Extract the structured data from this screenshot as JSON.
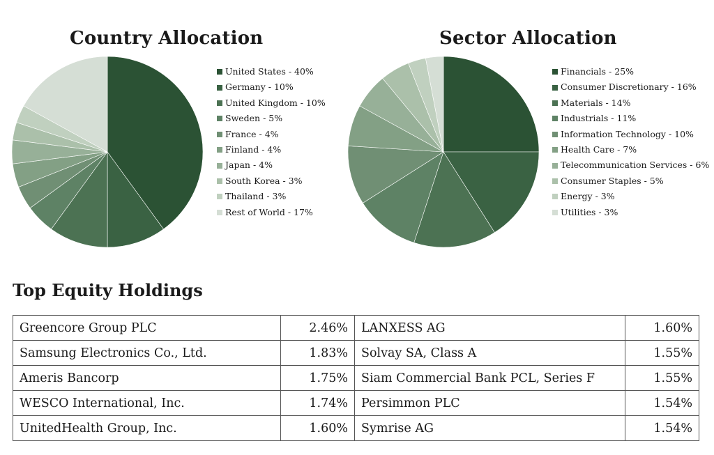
{
  "chart_data": [
    {
      "type": "pie",
      "title": "Country Allocation",
      "categories": [
        "United States",
        "Germany",
        "United Kingdom",
        "Sweden",
        "France",
        "Finland",
        "Japan",
        "South Korea",
        "Thailand",
        "Rest of World"
      ],
      "values": [
        40,
        10,
        10,
        5,
        4,
        4,
        4,
        3,
        3,
        17
      ],
      "labels": [
        "United States - 40%",
        "Germany - 10%",
        "United Kingdom - 10%",
        "Sweden - 5%",
        "France - 4%",
        "Finland - 4%",
        "Japan - 4%",
        "South Korea - 3%",
        "Thailand - 3%",
        "Rest of World - 17%"
      ],
      "colors": [
        "#2b5234",
        "#3a6243",
        "#4c7253",
        "#5e8265",
        "#708f74",
        "#83a085",
        "#97b098",
        "#abc0aa",
        "#c0d0bf",
        "#d5ded5"
      ],
      "legend": "right"
    },
    {
      "type": "pie",
      "title": "Sector Allocation",
      "categories": [
        "Financials",
        "Consumer Discretionary",
        "Materials",
        "Industrials",
        "Information Technology",
        "Health Care",
        "Telecommunication Services",
        "Consumer Staples",
        "Energy",
        "Utilities"
      ],
      "values": [
        25,
        16,
        14,
        11,
        10,
        7,
        6,
        5,
        3,
        3
      ],
      "labels": [
        "Financials - 25%",
        "Consumer Discretionary - 16%",
        "Materials - 14%",
        "Industrials - 11%",
        "Information Technology - 10%",
        "Health Care - 7%",
        "Telecommunication Services - 6%",
        "Consumer Staples - 5%",
        "Energy - 3%",
        "Utilities - 3%"
      ],
      "colors": [
        "#2b5234",
        "#3a6243",
        "#4c7253",
        "#5e8265",
        "#708f74",
        "#83a085",
        "#97b098",
        "#abc0aa",
        "#c0d0bf",
        "#d5ded5"
      ],
      "legend": "right"
    }
  ],
  "holdings": {
    "heading": "Top Equity Holdings",
    "rows": [
      {
        "left_name": "Greencore Group PLC",
        "left_pct": "2.46%",
        "right_name": "LANXESS AG",
        "right_pct": "1.60%"
      },
      {
        "left_name": "Samsung Electronics Co., Ltd.",
        "left_pct": "1.83%",
        "right_name": "Solvay SA, Class A",
        "right_pct": "1.55%"
      },
      {
        "left_name": "Ameris Bancorp",
        "left_pct": "1.75%",
        "right_name": "Siam Commercial Bank PCL, Series F",
        "right_pct": "1.55%"
      },
      {
        "left_name": "WESCO International, Inc.",
        "left_pct": "1.74%",
        "right_name": "Persimmon PLC",
        "right_pct": "1.54%"
      },
      {
        "left_name": "UnitedHealth Group, Inc.",
        "left_pct": "1.60%",
        "right_name": "Symrise AG",
        "right_pct": "1.54%"
      }
    ]
  }
}
